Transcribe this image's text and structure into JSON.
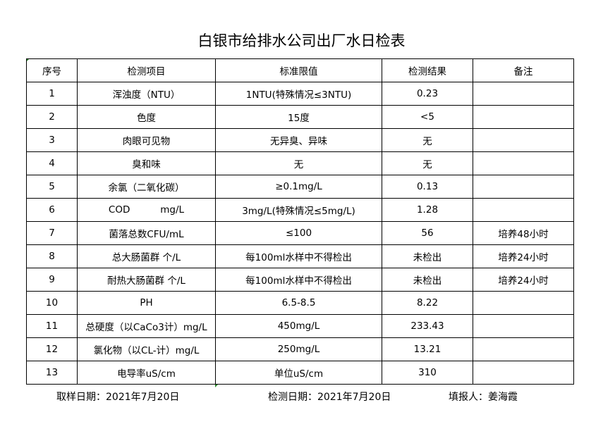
{
  "title": "白银市给排水公司出厂水日检表",
  "headers": [
    "序号",
    "检测项目",
    "标准限值",
    "检测结果",
    "备注"
  ],
  "rows": [
    [
      "1",
      "浑浊度（NTU）",
      "1NTU(特殊情况≤3NTU)",
      "0.23",
      ""
    ],
    [
      "2",
      "色度",
      "15度",
      "<5",
      ""
    ],
    [
      "3",
      "肉眼可见物",
      "无异臭、异味",
      "无",
      ""
    ],
    [
      "4",
      "臭和味",
      "无",
      "无",
      ""
    ],
    [
      "5",
      "余氯（二氧化碳）",
      "≥0.1mg/L",
      "0.13",
      ""
    ],
    [
      "6",
      "COD          mg/L",
      "3mg/L(特殊情况≤5mg/L)",
      "1.28",
      ""
    ],
    [
      "7",
      "菌落总数CFU/mL",
      "≤100",
      "56",
      "培养48小时"
    ],
    [
      "8",
      "总大肠菌群 个/L",
      "每100ml水样中不得检出",
      "未检出",
      "培养24小时"
    ],
    [
      "9",
      "耐热大肠菌群 个/L",
      "每100ml水样中不得检出",
      "未检出",
      "培养24小时"
    ],
    [
      "10",
      "PH",
      "6.5-8.5",
      "8.22",
      ""
    ],
    [
      "11",
      "总硬度（以CaCo3计）mg/L",
      "450mg/L",
      "233.43",
      ""
    ],
    [
      "12",
      "氯化物（以CL-计）mg/L",
      "250mg/L",
      "13.21",
      ""
    ],
    [
      "13",
      "电导率uS/cm",
      "单位uS/cm",
      "310",
      ""
    ]
  ],
  "footer": {
    "sample_date": "取样日期：2021年7月20日",
    "test_date": "检测日期：2021年7月20日",
    "reporter": "填报人：姜海霞"
  }
}
